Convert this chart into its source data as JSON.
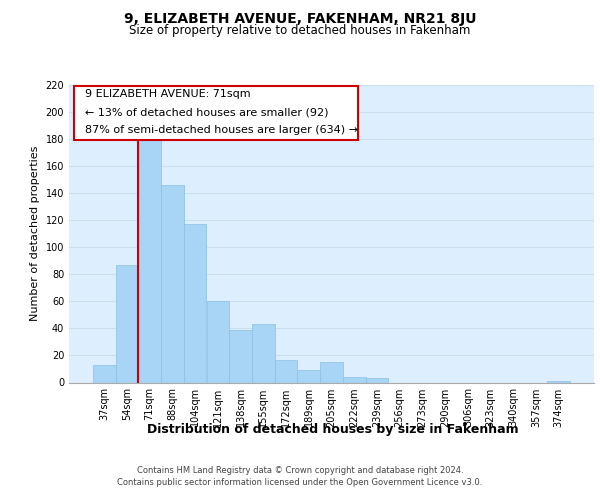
{
  "title": "9, ELIZABETH AVENUE, FAKENHAM, NR21 8JU",
  "subtitle": "Size of property relative to detached houses in Fakenham",
  "xlabel": "Distribution of detached houses by size in Fakenham",
  "ylabel": "Number of detached properties",
  "bar_labels": [
    "37sqm",
    "54sqm",
    "71sqm",
    "88sqm",
    "104sqm",
    "121sqm",
    "138sqm",
    "155sqm",
    "172sqm",
    "189sqm",
    "205sqm",
    "222sqm",
    "239sqm",
    "256sqm",
    "273sqm",
    "290sqm",
    "306sqm",
    "323sqm",
    "340sqm",
    "357sqm",
    "374sqm"
  ],
  "bar_values": [
    13,
    87,
    180,
    146,
    117,
    60,
    39,
    43,
    17,
    9,
    15,
    4,
    3,
    0,
    0,
    0,
    0,
    0,
    0,
    0,
    1
  ],
  "bar_color": "#a8d4f5",
  "bar_edgecolor": "#8bbfe0",
  "highlight_bar_index": 2,
  "highlight_line_color": "#cc0000",
  "ylim": [
    0,
    220
  ],
  "yticks": [
    0,
    20,
    40,
    60,
    80,
    100,
    120,
    140,
    160,
    180,
    200,
    220
  ],
  "annotation_title": "9 ELIZABETH AVENUE: 71sqm",
  "annotation_line1": "← 13% of detached houses are smaller (92)",
  "annotation_line2": "87% of semi-detached houses are larger (634) →",
  "annotation_box_color": "#ffffff",
  "annotation_box_edgecolor": "#cc0000",
  "footer_line1": "Contains HM Land Registry data © Crown copyright and database right 2024.",
  "footer_line2": "Contains public sector information licensed under the Open Government Licence v3.0.",
  "grid_color": "#c8dff0",
  "background_color": "#ddeeff",
  "title_fontsize": 10,
  "subtitle_fontsize": 8.5,
  "ylabel_fontsize": 8,
  "xlabel_fontsize": 9,
  "tick_fontsize": 7,
  "annotation_fontsize": 8,
  "footer_fontsize": 6
}
